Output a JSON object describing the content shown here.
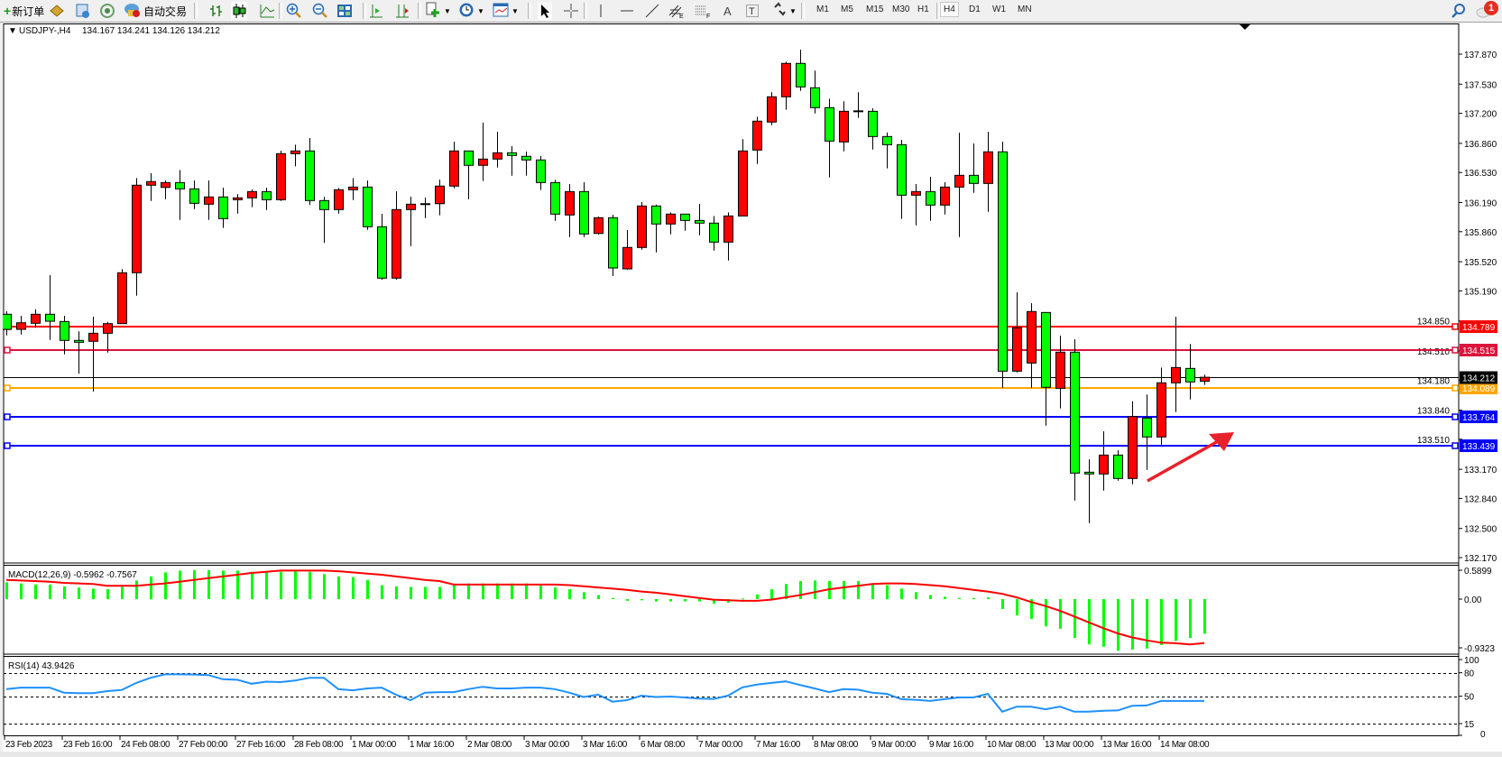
{
  "toolbar": {
    "new_order_label": "新订单",
    "auto_trading_label": "自动交易",
    "timeframes": [
      "M1",
      "M5",
      "M15",
      "M30",
      "H1",
      "H4",
      "D1",
      "W1",
      "MN"
    ],
    "active_timeframe": "H4",
    "notification_count": "1",
    "icons": [
      "new-order-icon",
      "gold-icon",
      "market-watch-icon",
      "signals-icon",
      "auto-trading-icon",
      "bar-chart-icon",
      "candlestick-icon",
      "line-chart-icon",
      "zoom-in-icon",
      "zoom-out-icon",
      "tile-windows-icon",
      "auto-scroll-icon",
      "chart-shift-icon",
      "indicators-icon",
      "periods-icon",
      "templates-icon",
      "cursor-icon",
      "crosshair-icon",
      "vertical-line-icon",
      "horizontal-line-icon",
      "trend-line-icon",
      "equidistant-channel-icon",
      "fibonacci-icon",
      "text-icon",
      "text-label-icon",
      "arrows-icon",
      "search-icon",
      "notification-icon"
    ]
  },
  "chart_header": {
    "symbol": "USDJPY-,H4",
    "ohlc": "134.167 134.241 134.126 134.212"
  },
  "chart_data": {
    "type": "candlestick",
    "symbol": "USDJPY-",
    "timeframe": "H4",
    "colors": {
      "up": "#FF0000",
      "down": "#00FF00",
      "outline": "#000000"
    },
    "ylim": [
      132.17,
      138.0
    ],
    "price_ticks": [
      "137.870",
      "137.530",
      "137.200",
      "136.860",
      "136.530",
      "136.190",
      "135.860",
      "135.520",
      "135.190",
      "134.850",
      "134.510",
      "134.180",
      "133.840",
      "133.510",
      "133.170",
      "132.840",
      "132.500",
      "132.170"
    ],
    "time_labels": [
      "23 Feb 2023",
      "23 Feb 16:00",
      "24 Feb 08:00",
      "27 Feb 00:00",
      "27 Feb 16:00",
      "28 Feb 08:00",
      "1 Mar 00:00",
      "1 Mar 16:00",
      "2 Mar 08:00",
      "3 Mar 00:00",
      "3 Mar 16:00",
      "6 Mar 08:00",
      "7 Mar 00:00",
      "7 Mar 16:00",
      "8 Mar 08:00",
      "9 Mar 00:00",
      "9 Mar 16:00",
      "10 Mar 08:00",
      "13 Mar 00:00",
      "13 Mar 16:00",
      "14 Mar 08:00"
    ],
    "candle_columns": [
      "open",
      "high",
      "low",
      "close"
    ],
    "candles": [
      [
        134.925,
        134.959,
        134.686,
        134.754
      ],
      [
        134.754,
        134.908,
        134.696,
        134.829
      ],
      [
        134.823,
        134.982,
        134.772,
        134.925
      ],
      [
        134.925,
        135.367,
        134.635,
        134.846
      ],
      [
        134.843,
        134.908,
        134.471,
        134.629
      ],
      [
        134.629,
        134.731,
        134.251,
        134.608
      ],
      [
        134.619,
        134.897,
        134.05,
        134.71
      ],
      [
        134.71,
        134.839,
        134.492,
        134.819
      ],
      [
        134.819,
        135.436,
        134.819,
        135.395
      ],
      [
        135.395,
        136.467,
        135.135,
        136.386
      ],
      [
        136.386,
        136.522,
        136.208,
        136.427
      ],
      [
        136.361,
        136.44,
        136.228,
        136.416
      ],
      [
        136.416,
        136.559,
        135.993,
        136.345
      ],
      [
        136.345,
        136.44,
        136.116,
        136.181
      ],
      [
        136.171,
        136.44,
        135.993,
        136.253
      ],
      [
        136.253,
        136.358,
        135.902,
        136.008
      ],
      [
        136.222,
        136.284,
        136.065,
        136.243
      ],
      [
        136.243,
        136.338,
        136.137,
        136.314
      ],
      [
        136.314,
        136.358,
        136.106,
        136.222
      ],
      [
        136.222,
        136.777,
        136.208,
        136.743
      ],
      [
        136.743,
        136.845,
        136.6,
        136.774
      ],
      [
        136.774,
        136.92,
        136.161,
        136.212
      ],
      [
        136.212,
        136.253,
        135.732,
        136.11
      ],
      [
        136.11,
        136.355,
        136.065,
        136.335
      ],
      [
        136.335,
        136.467,
        136.218,
        136.365
      ],
      [
        136.365,
        136.44,
        135.881,
        135.916
      ],
      [
        135.916,
        136.062,
        135.316,
        135.334
      ],
      [
        135.334,
        136.317,
        135.316,
        136.11
      ],
      [
        136.11,
        136.256,
        135.697,
        136.171
      ],
      [
        136.171,
        136.246,
        136.014,
        136.177
      ],
      [
        136.177,
        136.45,
        136.045,
        136.376
      ],
      [
        136.376,
        136.879,
        136.351,
        136.774
      ],
      [
        136.774,
        136.774,
        136.228,
        136.611
      ],
      [
        136.611,
        137.094,
        136.433,
        136.682
      ],
      [
        136.682,
        136.992,
        136.586,
        136.753
      ],
      [
        136.753,
        136.828,
        136.494,
        136.723
      ],
      [
        136.713,
        136.767,
        136.494,
        136.672
      ],
      [
        136.672,
        136.716,
        136.331,
        136.416
      ],
      [
        136.416,
        136.447,
        135.983,
        136.059
      ],
      [
        136.049,
        136.399,
        135.799,
        136.314
      ],
      [
        136.314,
        136.419,
        135.799,
        135.834
      ],
      [
        135.84,
        136.031,
        135.827,
        136.018
      ],
      [
        136.018,
        136.052,
        135.357,
        135.449
      ],
      [
        135.439,
        135.878,
        135.429,
        135.681
      ],
      [
        135.681,
        136.195,
        135.656,
        136.151
      ],
      [
        136.151,
        136.167,
        135.626,
        135.947
      ],
      [
        135.947,
        136.079,
        135.83,
        136.059
      ],
      [
        136.059,
        136.059,
        135.871,
        135.987
      ],
      [
        135.987,
        136.174,
        135.82,
        135.957
      ],
      [
        135.957,
        136.038,
        135.646,
        135.742
      ],
      [
        135.742,
        136.079,
        135.534,
        136.038
      ],
      [
        136.038,
        136.907,
        136.038,
        136.774
      ],
      [
        136.784,
        137.162,
        136.627,
        137.111
      ],
      [
        137.101,
        137.438,
        137.066,
        137.387
      ],
      [
        137.387,
        137.785,
        137.24,
        137.765
      ],
      [
        137.765,
        137.921,
        137.454,
        137.499
      ],
      [
        137.489,
        137.683,
        137.199,
        137.264
      ],
      [
        137.264,
        137.366,
        136.474,
        136.886
      ],
      [
        136.876,
        137.336,
        136.77,
        137.223
      ],
      [
        137.223,
        137.438,
        137.148,
        137.223
      ],
      [
        137.223,
        137.257,
        136.79,
        136.937
      ],
      [
        136.937,
        136.984,
        136.576,
        136.845
      ],
      [
        136.845,
        136.9,
        136.004,
        136.273
      ],
      [
        136.273,
        136.399,
        135.932,
        136.314
      ],
      [
        136.314,
        136.481,
        135.983,
        136.161
      ],
      [
        136.161,
        136.419,
        136.055,
        136.365
      ],
      [
        136.365,
        136.981,
        135.799,
        136.498
      ],
      [
        136.498,
        136.859,
        136.3,
        136.406
      ],
      [
        136.406,
        136.992,
        136.085,
        136.764
      ],
      [
        136.764,
        136.879,
        134.09,
        134.281
      ],
      [
        134.281,
        135.173,
        134.267,
        134.772
      ],
      [
        134.373,
        135.051,
        134.09,
        134.956
      ],
      [
        134.945,
        134.945,
        133.664,
        134.098
      ],
      [
        134.087,
        134.683,
        133.859,
        134.496
      ],
      [
        134.496,
        134.642,
        132.817,
        133.127
      ],
      [
        133.137,
        133.283,
        132.561,
        133.117
      ],
      [
        133.117,
        133.6,
        132.929,
        133.331
      ],
      [
        133.331,
        133.386,
        133.041,
        133.066
      ],
      [
        133.066,
        133.94,
        133.0,
        133.767
      ],
      [
        133.75,
        134.016,
        133.164,
        133.536
      ],
      [
        133.536,
        134.322,
        133.45,
        134.149
      ],
      [
        134.149,
        134.897,
        133.818,
        134.322
      ],
      [
        134.312,
        134.588,
        133.961,
        134.159
      ],
      [
        134.167,
        134.241,
        134.126,
        134.212
      ]
    ],
    "horizontal_lines": [
      {
        "price": 134.789,
        "label": "134.789",
        "color": "#FF0000"
      },
      {
        "price": 134.515,
        "label": "134.515",
        "color": "#DC143C"
      },
      {
        "price": 134.089,
        "label": "134.089",
        "color": "#FFA500"
      },
      {
        "price": 133.764,
        "label": "133.764",
        "color": "#0000FF"
      },
      {
        "price": 133.439,
        "label": "133.439",
        "color": "#0000FF"
      }
    ],
    "current_price": {
      "price": 134.212,
      "label": "134.212",
      "color": "#000000"
    },
    "annotation_arrow": {
      "color": "#E8222A",
      "direction": "up-right"
    },
    "macd": {
      "label": "MACD(12,26,9) -0.5962 -0.7567",
      "axis_ticks": [
        "0.5899",
        "0.00",
        "-0.9323"
      ],
      "ylim": [
        -0.9323,
        0.5899
      ],
      "histogram_color": "#00FF00",
      "signal_color": "#FF0000",
      "histogram": [
        0.29,
        0.27,
        0.25,
        0.25,
        0.22,
        0.2,
        0.18,
        0.17,
        0.21,
        0.32,
        0.39,
        0.46,
        0.49,
        0.5,
        0.5,
        0.49,
        0.49,
        0.47,
        0.47,
        0.47,
        0.49,
        0.47,
        0.43,
        0.39,
        0.38,
        0.33,
        0.24,
        0.22,
        0.21,
        0.21,
        0.21,
        0.25,
        0.27,
        0.27,
        0.27,
        0.27,
        0.27,
        0.23,
        0.2,
        0.17,
        0.12,
        0.07,
        0.02,
        -0.03,
        -0.02,
        -0.04,
        -0.04,
        -0.04,
        -0.04,
        -0.08,
        -0.06,
        0.01,
        0.08,
        0.17,
        0.26,
        0.31,
        0.32,
        0.31,
        0.31,
        0.31,
        0.27,
        0.24,
        0.18,
        0.12,
        0.07,
        0.04,
        0.02,
        0.02,
        0.03,
        -0.17,
        -0.28,
        -0.34,
        -0.47,
        -0.51,
        -0.67,
        -0.78,
        -0.82,
        -0.89,
        -0.87,
        -0.85,
        -0.79,
        -0.72,
        -0.67,
        -0.5962
      ],
      "signal": [
        0.33,
        0.32,
        0.31,
        0.3,
        0.28,
        0.27,
        0.26,
        0.23,
        0.23,
        0.23,
        0.25,
        0.27,
        0.3,
        0.33,
        0.36,
        0.39,
        0.42,
        0.45,
        0.47,
        0.49,
        0.49,
        0.49,
        0.49,
        0.48,
        0.46,
        0.44,
        0.42,
        0.39,
        0.36,
        0.33,
        0.31,
        0.25,
        0.25,
        0.25,
        0.25,
        0.25,
        0.25,
        0.25,
        0.25,
        0.24,
        0.22,
        0.2,
        0.18,
        0.16,
        0.13,
        0.11,
        0.08,
        0.05,
        0.02,
        -0.01,
        -0.02,
        -0.03,
        -0.03,
        -0.01,
        0.03,
        0.07,
        0.12,
        0.17,
        0.2,
        0.23,
        0.26,
        0.27,
        0.27,
        0.26,
        0.24,
        0.22,
        0.19,
        0.16,
        0.13,
        0.09,
        0.03,
        -0.05,
        -0.12,
        -0.2,
        -0.3,
        -0.4,
        -0.5,
        -0.59,
        -0.66,
        -0.71,
        -0.75,
        -0.76,
        -0.78,
        -0.7567
      ]
    },
    "rsi": {
      "label": "RSI(14) 43.9426",
      "axis_ticks": [
        "100",
        "80",
        "50",
        "15",
        "0"
      ],
      "levels": [
        80,
        50,
        15
      ],
      "ylim": [
        0,
        100
      ],
      "color": "#1E90FF",
      "values": [
        59,
        61,
        61,
        61,
        54.6,
        54,
        54,
        56.5,
        58,
        67,
        73.6,
        78,
        78,
        77.7,
        77,
        71.7,
        71,
        66,
        68.6,
        68,
        70,
        73.6,
        73.6,
        59,
        57.6,
        60,
        61,
        52,
        45,
        54.6,
        55.3,
        55.3,
        59,
        62,
        60,
        60,
        61,
        61,
        59,
        54.6,
        49,
        52,
        43,
        45,
        50.8,
        49,
        49.6,
        48.5,
        47,
        46.6,
        50.8,
        61.4,
        64.8,
        67,
        69,
        64.4,
        60,
        55.3,
        59,
        58.4,
        54.6,
        53,
        46.2,
        45.4,
        44,
        46.2,
        48.5,
        48.5,
        53,
        30.2,
        36.7,
        36.7,
        33.3,
        36.7,
        30.2,
        30.2,
        31.4,
        31.8,
        37.8,
        38.2,
        44,
        44,
        44,
        43.9426
      ]
    }
  }
}
